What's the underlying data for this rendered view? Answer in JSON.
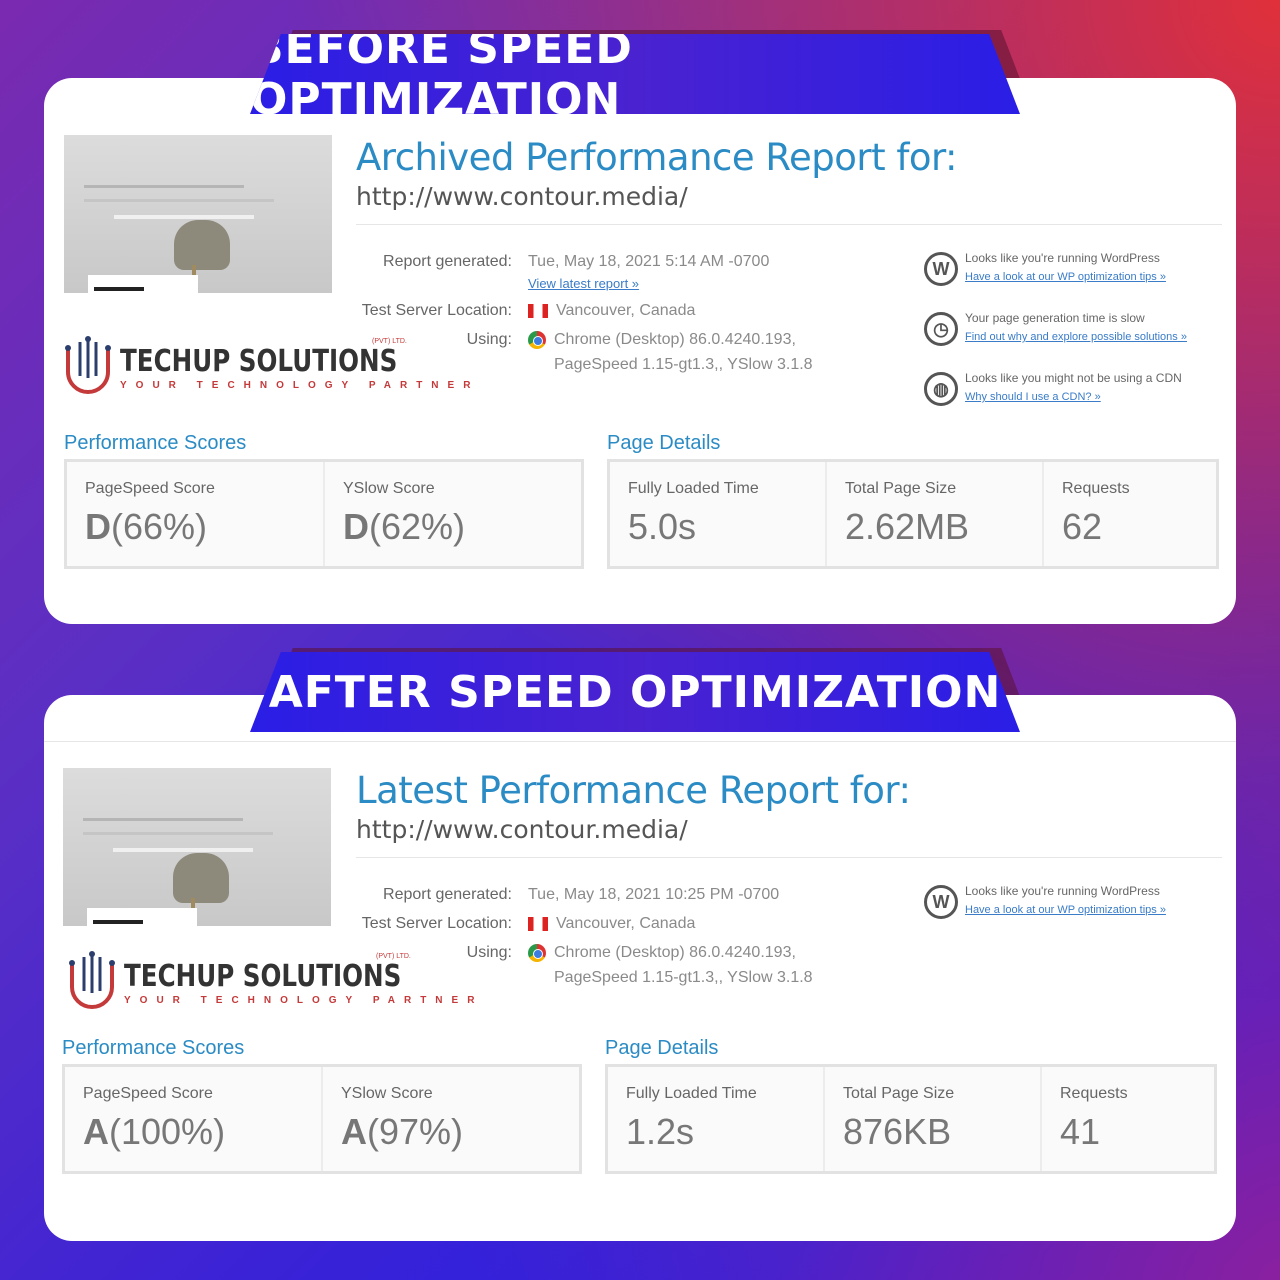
{
  "before": {
    "banner": "BEFORE SPEED OPTIMIZATION",
    "title": "Archived Performance Report for:",
    "url": "http://www.contour.media/",
    "report_generated_label": "Report generated:",
    "report_generated_value": "Tue, May 18, 2021 5:14 AM -0700",
    "latest_link": "View latest report »",
    "server_label": "Test Server Location:",
    "server_value": "Vancouver, Canada",
    "using_label": "Using:",
    "using_line1": "Chrome (Desktop) 86.0.4240.193,",
    "using_line2": "PageSpeed 1.15-gt1.3,, YSlow 3.1.8",
    "tips": [
      {
        "icon": "wordpress-icon",
        "text": "Looks like you're running WordPress",
        "link": "Have a look at our WP optimization tips »"
      },
      {
        "icon": "stopwatch-icon",
        "text": "Your page generation time is slow",
        "link": "Find out why and explore possible solutions »"
      },
      {
        "icon": "globe-icon",
        "text": "Looks like you might not be using a CDN",
        "link": "Why should I use a CDN? »"
      }
    ],
    "perf_heading": "Performance Scores",
    "details_heading": "Page Details",
    "pagespeed_label": "PageSpeed Score",
    "pagespeed_grade": "D",
    "pagespeed_pct": "(66%)",
    "yslow_label": "YSlow Score",
    "yslow_grade": "D",
    "yslow_pct": "(62%)",
    "load_label": "Fully Loaded Time",
    "load_value": "5.0s",
    "size_label": "Total Page Size",
    "size_value": "2.62MB",
    "requests_label": "Requests",
    "requests_value": "62"
  },
  "after": {
    "banner": "AFTER SPEED OPTIMIZATION",
    "title": "Latest Performance Report for:",
    "url": "http://www.contour.media/",
    "report_generated_label": "Report generated:",
    "report_generated_value": "Tue, May 18, 2021 10:25 PM -0700",
    "server_label": "Test Server Location:",
    "server_value": "Vancouver, Canada",
    "using_label": "Using:",
    "using_line1": "Chrome (Desktop) 86.0.4240.193,",
    "using_line2": "PageSpeed 1.15-gt1.3,, YSlow 3.1.8",
    "tips": [
      {
        "icon": "wordpress-icon",
        "text": "Looks like you're running WordPress",
        "link": "Have a look at our WP optimization tips »"
      }
    ],
    "perf_heading": "Performance Scores",
    "details_heading": "Page Details",
    "pagespeed_label": "PageSpeed Score",
    "pagespeed_grade": "A",
    "pagespeed_pct": "(100%)",
    "yslow_label": "YSlow Score",
    "yslow_grade": "A",
    "yslow_pct": "(97%)",
    "load_label": "Fully Loaded Time",
    "load_value": "1.2s",
    "size_label": "Total Page Size",
    "size_value": "876KB",
    "requests_label": "Requests",
    "requests_value": "41"
  },
  "logo": {
    "name": "TECHUP SOLUTIONS",
    "tagline": "YOUR TECHNOLOGY PARTNER",
    "pvt": "(PVT) LTD."
  },
  "colors": {
    "ribbon": "#2a1ee6",
    "title_blue": "#2b8bc4",
    "grade_d": "#e0a84a",
    "grade_a": "#39b05a"
  }
}
